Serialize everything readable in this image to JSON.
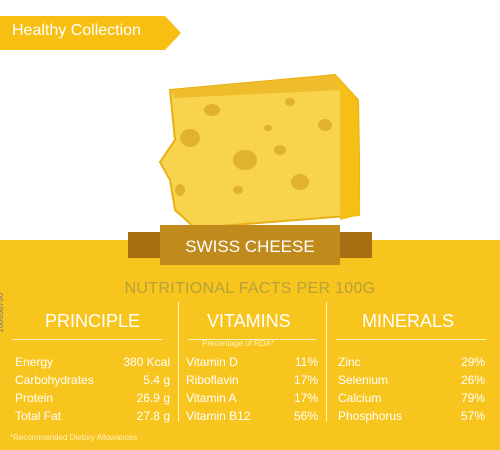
{
  "header": {
    "banner": "Healthy Collection"
  },
  "title": "SWISS CHEESE",
  "subtitle": "NUTRITIONAL FACTS PER 100G",
  "columns": {
    "principle": {
      "title": "PRINCIPLE",
      "rows": [
        {
          "label": "Energy",
          "value": "380 Kcal"
        },
        {
          "label": "Carbohydrates",
          "value": "5.4 g"
        },
        {
          "label": "Protein",
          "value": "26.9 g"
        },
        {
          "label": "Total Fat",
          "value": "27.8 g"
        }
      ]
    },
    "vitamins": {
      "title": "VITAMINS",
      "note": "Percentage of RDA*",
      "rows": [
        {
          "label": "Vitamin D",
          "value": "11%"
        },
        {
          "label": "Riboflavin",
          "value": "17%"
        },
        {
          "label": "Vitamin A",
          "value": "17%"
        },
        {
          "label": "Vitamin B12",
          "value": "56%"
        }
      ]
    },
    "minerals": {
      "title": "MINERALS",
      "rows": [
        {
          "label": "Zinc",
          "value": "29%"
        },
        {
          "label": "Selenium",
          "value": "26%"
        },
        {
          "label": "Calcium",
          "value": "79%"
        },
        {
          "label": "Phosphorus",
          "value": "57%"
        }
      ]
    }
  },
  "footer": "*Recommended Dietory Allowances",
  "vertical_id": "160658760"
}
